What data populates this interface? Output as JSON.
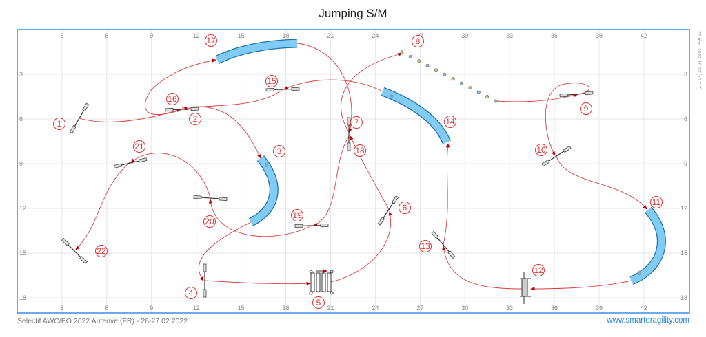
{
  "title": "Jumping S/M",
  "footer": {
    "event": "Selectif AWC/EO 2022 Auterive (FR) - 26-27.02.2022",
    "site": "www.smarteragility.com"
  },
  "stamp": "27 févr. 2022 16:12 (v6.7.7)",
  "grid": {
    "x_ticks": [
      3,
      6,
      9,
      12,
      15,
      18,
      21,
      24,
      27,
      30,
      33,
      36,
      39,
      42
    ],
    "y_ticks": [
      3,
      6,
      9,
      12,
      15,
      18
    ],
    "unit_step": 3
  },
  "colors": {
    "path": "#d84040",
    "number": "#e03030",
    "tunnel_fill": "#80ccf4",
    "tunnel_stroke": "#1f6fa8",
    "frame": "#3a8ee6",
    "grid": "#e6e6e6",
    "weave_a": "#a8c878",
    "weave_b": "#7ab4d8"
  },
  "tunnel_length_label": "6",
  "obstacles": [
    {
      "id": "J1",
      "type": "jump"
    },
    {
      "id": "J2",
      "type": "jump"
    },
    {
      "id": "T3",
      "type": "tunnel"
    },
    {
      "id": "J4",
      "type": "jump"
    },
    {
      "id": "L5",
      "type": "long-jump"
    },
    {
      "id": "J6",
      "type": "jump"
    },
    {
      "id": "J7",
      "type": "jump"
    },
    {
      "id": "W8",
      "type": "weave-poles"
    },
    {
      "id": "J9",
      "type": "jump"
    },
    {
      "id": "J10",
      "type": "jump"
    },
    {
      "id": "T11",
      "type": "tunnel"
    },
    {
      "id": "X12",
      "type": "wall"
    },
    {
      "id": "J13",
      "type": "jump"
    },
    {
      "id": "T14",
      "type": "tunnel"
    },
    {
      "id": "J15",
      "type": "jump"
    },
    {
      "id": "T17",
      "type": "tunnel"
    },
    {
      "id": "J19",
      "type": "jump"
    },
    {
      "id": "J20",
      "type": "jump"
    },
    {
      "id": "J21",
      "type": "jump"
    },
    {
      "id": "J22",
      "type": "jump"
    }
  ],
  "sequence": [
    "1",
    "2",
    "3",
    "4",
    "5",
    "6",
    "7",
    "8",
    "9",
    "10",
    "11",
    "12",
    "13",
    "14",
    "15",
    "16",
    "17",
    "18",
    "19",
    "20",
    "21",
    "22"
  ]
}
